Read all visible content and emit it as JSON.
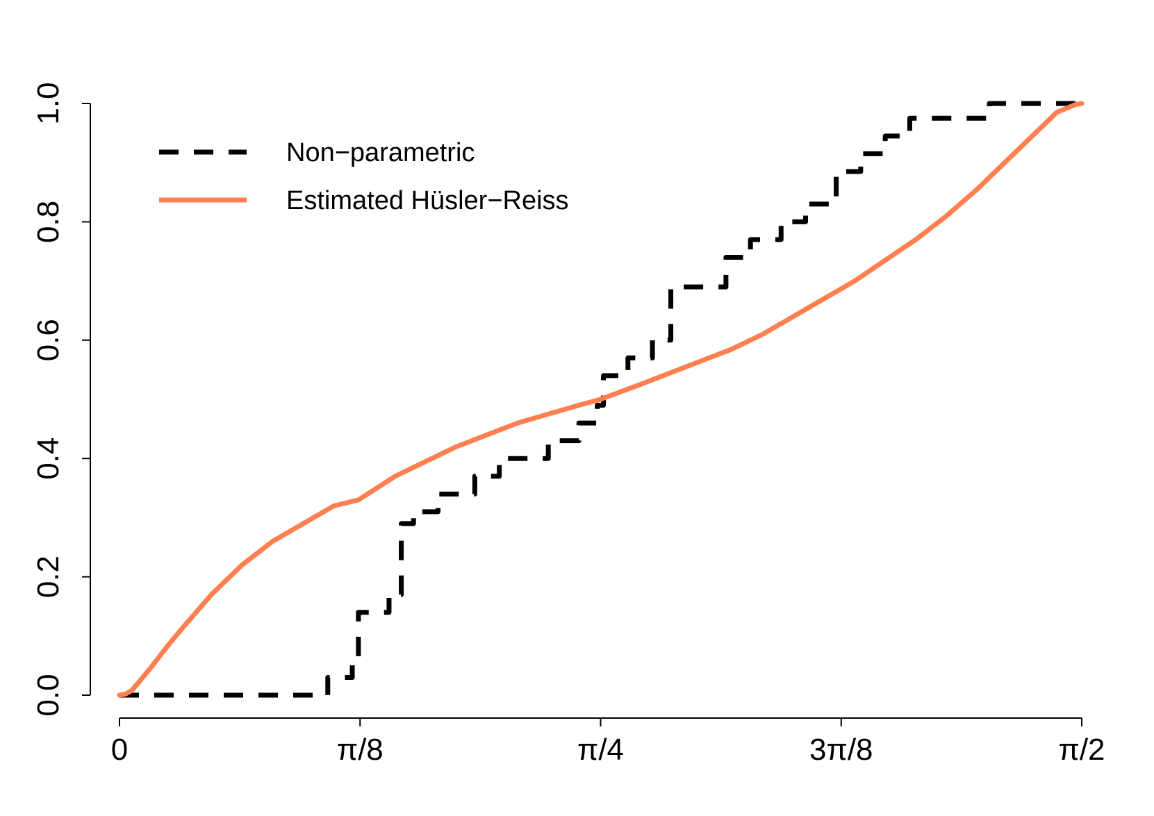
{
  "chart_data": {
    "type": "line",
    "title": "",
    "xlabel": "",
    "ylabel": "",
    "xlim": [
      0,
      1.5708
    ],
    "ylim": [
      0,
      1
    ],
    "x_ticks": [
      {
        "value": 0,
        "label": "0"
      },
      {
        "value": 0.3927,
        "label": "π/8"
      },
      {
        "value": 0.7854,
        "label": "π/4"
      },
      {
        "value": 1.1781,
        "label": "3π/8"
      },
      {
        "value": 1.5708,
        "label": "π/2"
      }
    ],
    "y_ticks": [
      {
        "value": 0,
        "label": "0.0"
      },
      {
        "value": 0.2,
        "label": "0.2"
      },
      {
        "value": 0.4,
        "label": "0.4"
      },
      {
        "value": 0.6,
        "label": "0.6"
      },
      {
        "value": 0.8,
        "label": "0.8"
      },
      {
        "value": 1,
        "label": "1.0"
      }
    ],
    "grid": false,
    "legend": {
      "position": "top-left"
    },
    "series": [
      {
        "name": "Non−parametric",
        "color": "#000000",
        "style": "dashed",
        "step": true,
        "x": [
          0,
          0.34,
          0.38,
          0.39,
          0.44,
          0.46,
          0.48,
          0.52,
          0.58,
          0.62,
          0.7,
          0.75,
          0.78,
          0.79,
          0.83,
          0.87,
          0.9,
          0.99,
          1.03,
          1.08,
          1.12,
          1.17,
          1.21,
          1.25,
          1.29,
          1.42,
          1.5708
        ],
        "y": [
          0,
          0.03,
          0.06,
          0.14,
          0.17,
          0.29,
          0.31,
          0.34,
          0.37,
          0.4,
          0.43,
          0.46,
          0.49,
          0.54,
          0.57,
          0.6,
          0.69,
          0.74,
          0.77,
          0.8,
          0.83,
          0.885,
          0.915,
          0.945,
          0.975,
          1.0,
          1.0
        ]
      },
      {
        "name": "Estimated Hüsler−Reiss",
        "color": "#FF7F50",
        "style": "solid",
        "step": false,
        "x": [
          0,
          0.01,
          0.02,
          0.03,
          0.05,
          0.08,
          0.1,
          0.15,
          0.2,
          0.25,
          0.3,
          0.35,
          0.39,
          0.45,
          0.5,
          0.55,
          0.6,
          0.65,
          0.7,
          0.75,
          0.785,
          0.85,
          0.9,
          0.95,
          1.0,
          1.05,
          1.1,
          1.15,
          1.2,
          1.25,
          1.3,
          1.35,
          1.4,
          1.45,
          1.5,
          1.53,
          1.56,
          1.5708
        ],
        "y": [
          0,
          0.002,
          0.008,
          0.02,
          0.045,
          0.085,
          0.11,
          0.17,
          0.22,
          0.26,
          0.29,
          0.32,
          0.33,
          0.37,
          0.395,
          0.42,
          0.44,
          0.46,
          0.475,
          0.49,
          0.5,
          0.525,
          0.545,
          0.565,
          0.585,
          0.61,
          0.64,
          0.67,
          0.7,
          0.735,
          0.77,
          0.81,
          0.855,
          0.905,
          0.955,
          0.985,
          0.998,
          1.0
        ]
      }
    ]
  }
}
